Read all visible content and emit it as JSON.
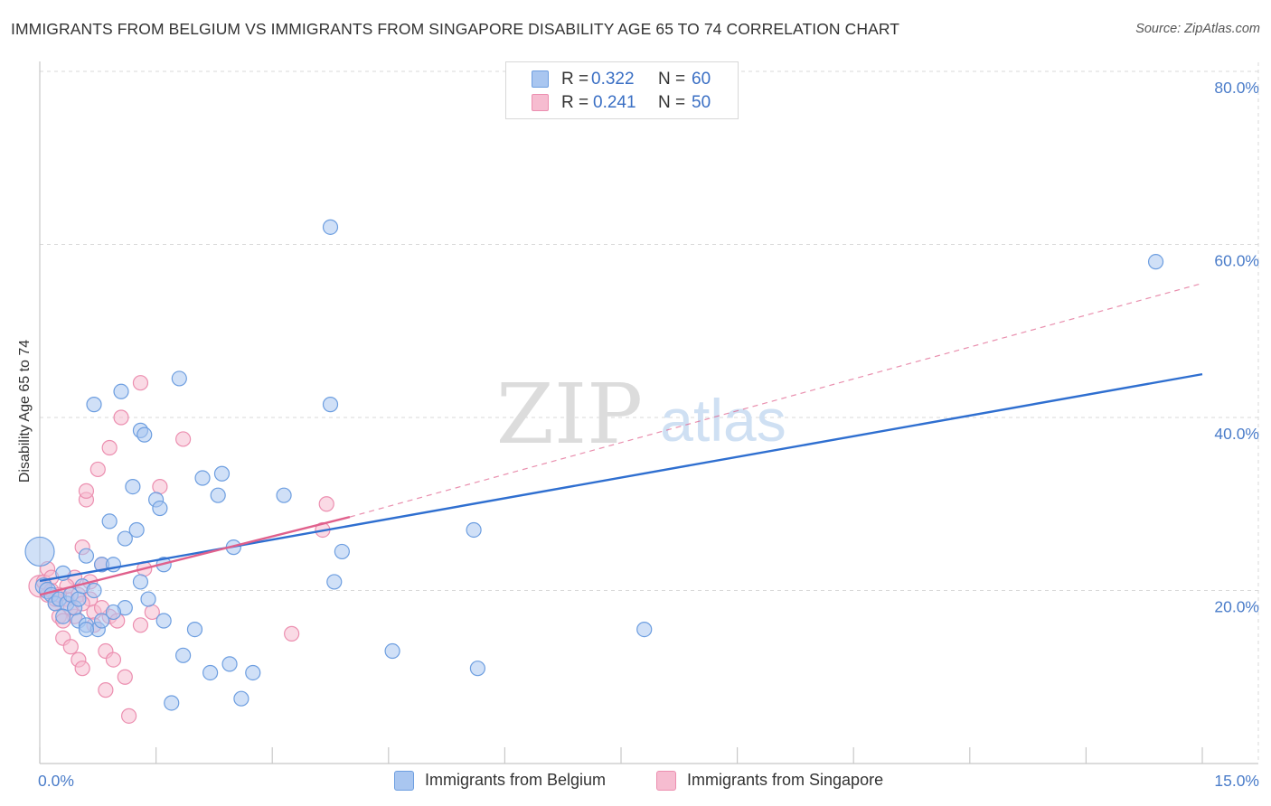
{
  "title": "IMMIGRANTS FROM BELGIUM VS IMMIGRANTS FROM SINGAPORE DISABILITY AGE 65 TO 74 CORRELATION CHART",
  "source": "Source: ZipAtlas.com",
  "watermark": {
    "zip": "ZIP",
    "atlas": "atlas"
  },
  "colors": {
    "belgium_fill": "#a9c6f0",
    "belgium_stroke": "#6d9ee0",
    "belgium_line": "#2f6fd0",
    "singapore_fill": "#f6bcd0",
    "singapore_stroke": "#ec8fb0",
    "singapore_line": "#e0608c",
    "tick_text": "#4a7cc9",
    "grid": "#d9d9d9"
  },
  "legend_top": {
    "r_label": "R =",
    "n_label": "N =",
    "belgium": {
      "r": "0.322",
      "n": "60"
    },
    "singapore": {
      "r": "0.241",
      "n": "50"
    }
  },
  "legend_bottom": {
    "belgium": "Immigrants from Belgium",
    "singapore": "Immigrants from Singapore"
  },
  "chart_data": {
    "type": "scatter",
    "title": "IMMIGRANTS FROM BELGIUM VS IMMIGRANTS FROM SINGAPORE DISABILITY AGE 65 TO 74 CORRELATION CHART",
    "xlabel": "",
    "ylabel": "Disability Age 65 to 74",
    "xlim": [
      0,
      15
    ],
    "ylim": [
      0,
      80
    ],
    "x_ticks_labeled": [
      {
        "value": 0,
        "label": "0.0%"
      },
      {
        "value": 15,
        "label": "15.0%"
      }
    ],
    "x_tick_marks": [
      0,
      1.5,
      3,
      4.5,
      6,
      7.5,
      9,
      10.5,
      12,
      13.5,
      15
    ],
    "y_ticks": [
      {
        "value": 20,
        "label": "20.0%"
      },
      {
        "value": 40,
        "label": "40.0%"
      },
      {
        "value": 60,
        "label": "60.0%"
      },
      {
        "value": 80,
        "label": "80.0%"
      }
    ],
    "grid": true,
    "legend_position": "bottom",
    "series": [
      {
        "name": "Immigrants from Belgium",
        "r": 0.322,
        "n": 60,
        "trend": {
          "x0": 0,
          "y0": 21.1,
          "x1": 15,
          "y1": 45.0,
          "style": "solid"
        },
        "points": [
          [
            0.0,
            24.5,
            16
          ],
          [
            0.05,
            20.5,
            9
          ],
          [
            0.1,
            20.0,
            9
          ],
          [
            0.15,
            19.5,
            8
          ],
          [
            0.2,
            18.5,
            8
          ],
          [
            0.25,
            19.0,
            8
          ],
          [
            0.3,
            22.0,
            8
          ],
          [
            0.35,
            18.5,
            8
          ],
          [
            0.4,
            19.5,
            8
          ],
          [
            0.45,
            18.0,
            8
          ],
          [
            0.5,
            19.0,
            8
          ],
          [
            0.5,
            16.5,
            8
          ],
          [
            0.55,
            20.5,
            8
          ],
          [
            0.6,
            24.0,
            8
          ],
          [
            0.6,
            16.0,
            8
          ],
          [
            0.7,
            20.0,
            8
          ],
          [
            0.7,
            41.5,
            8
          ],
          [
            0.75,
            15.5,
            8
          ],
          [
            0.8,
            16.5,
            8
          ],
          [
            0.8,
            23.0,
            8
          ],
          [
            0.9,
            28.0,
            8
          ],
          [
            0.95,
            23.0,
            8
          ],
          [
            1.05,
            43.0,
            8
          ],
          [
            1.1,
            26.0,
            8
          ],
          [
            1.1,
            18.0,
            8
          ],
          [
            1.2,
            32.0,
            8
          ],
          [
            1.25,
            27.0,
            8
          ],
          [
            1.3,
            21.0,
            8
          ],
          [
            1.3,
            38.5,
            8
          ],
          [
            1.35,
            38.0,
            8
          ],
          [
            1.4,
            19.0,
            8
          ],
          [
            1.5,
            30.5,
            8
          ],
          [
            1.55,
            29.5,
            8
          ],
          [
            1.6,
            16.5,
            8
          ],
          [
            1.6,
            23.0,
            8
          ],
          [
            1.8,
            44.5,
            8
          ],
          [
            1.85,
            12.5,
            8
          ],
          [
            2.0,
            15.5,
            8
          ],
          [
            2.1,
            33.0,
            8
          ],
          [
            2.2,
            10.5,
            8
          ],
          [
            2.3,
            31.0,
            8
          ],
          [
            2.35,
            33.5,
            8
          ],
          [
            2.45,
            11.5,
            8
          ],
          [
            2.5,
            25.0,
            8
          ],
          [
            2.6,
            7.5,
            8
          ],
          [
            2.75,
            10.5,
            8
          ],
          [
            3.15,
            31.0,
            8
          ],
          [
            3.75,
            62.0,
            8
          ],
          [
            3.75,
            41.5,
            8
          ],
          [
            3.8,
            21.0,
            8
          ],
          [
            3.9,
            24.5,
            8
          ],
          [
            4.55,
            13.0,
            8
          ],
          [
            5.6,
            27.0,
            8
          ],
          [
            5.65,
            11.0,
            8
          ],
          [
            7.8,
            15.5,
            8
          ],
          [
            14.4,
            58.0,
            8
          ],
          [
            0.6,
            15.5,
            8
          ],
          [
            0.95,
            17.5,
            8
          ],
          [
            1.7,
            7.0,
            8
          ],
          [
            0.3,
            17.0,
            8
          ]
        ]
      },
      {
        "name": "Immigrants from Singapore",
        "r": 0.241,
        "n": 50,
        "trend": {
          "x0": 0,
          "y0": 19.5,
          "x1": 4.0,
          "y1": 28.5,
          "style": "solid",
          "extended_to": {
            "x": 15,
            "y": 55.5,
            "style": "dashed"
          }
        },
        "points": [
          [
            0.0,
            20.5,
            12
          ],
          [
            0.05,
            21.0,
            8
          ],
          [
            0.1,
            19.5,
            8
          ],
          [
            0.15,
            20.0,
            8
          ],
          [
            0.2,
            18.5,
            8
          ],
          [
            0.25,
            17.0,
            8
          ],
          [
            0.3,
            14.5,
            8
          ],
          [
            0.35,
            19.0,
            8
          ],
          [
            0.4,
            13.5,
            8
          ],
          [
            0.45,
            17.0,
            8
          ],
          [
            0.5,
            19.5,
            8
          ],
          [
            0.5,
            12.0,
            8
          ],
          [
            0.55,
            11.0,
            8
          ],
          [
            0.55,
            25.0,
            8
          ],
          [
            0.6,
            30.5,
            8
          ],
          [
            0.6,
            31.5,
            8
          ],
          [
            0.65,
            19.0,
            8
          ],
          [
            0.7,
            17.5,
            8
          ],
          [
            0.75,
            34.0,
            8
          ],
          [
            0.8,
            23.0,
            8
          ],
          [
            0.85,
            13.0,
            8
          ],
          [
            0.85,
            8.5,
            8
          ],
          [
            0.9,
            17.0,
            8
          ],
          [
            0.9,
            36.5,
            8
          ],
          [
            0.95,
            12.0,
            8
          ],
          [
            1.0,
            16.5,
            8
          ],
          [
            1.05,
            40.0,
            8
          ],
          [
            1.1,
            10.0,
            8
          ],
          [
            1.15,
            5.5,
            8
          ],
          [
            1.3,
            44.0,
            8
          ],
          [
            1.3,
            16.0,
            8
          ],
          [
            1.35,
            22.5,
            8
          ],
          [
            1.45,
            17.5,
            8
          ],
          [
            1.55,
            32.0,
            8
          ],
          [
            1.85,
            37.5,
            8
          ],
          [
            3.25,
            15.0,
            8
          ],
          [
            3.65,
            27.0,
            8
          ],
          [
            3.7,
            30.0,
            8
          ],
          [
            0.1,
            22.5,
            8
          ],
          [
            0.2,
            19.0,
            8
          ],
          [
            0.3,
            16.5,
            8
          ],
          [
            0.4,
            18.0,
            8
          ],
          [
            0.45,
            21.5,
            8
          ],
          [
            0.55,
            18.5,
            8
          ],
          [
            0.65,
            21.0,
            8
          ],
          [
            0.7,
            16.0,
            8
          ],
          [
            0.8,
            18.0,
            8
          ],
          [
            0.35,
            20.5,
            8
          ],
          [
            0.25,
            19.5,
            8
          ],
          [
            0.15,
            21.5,
            8
          ]
        ]
      }
    ]
  }
}
